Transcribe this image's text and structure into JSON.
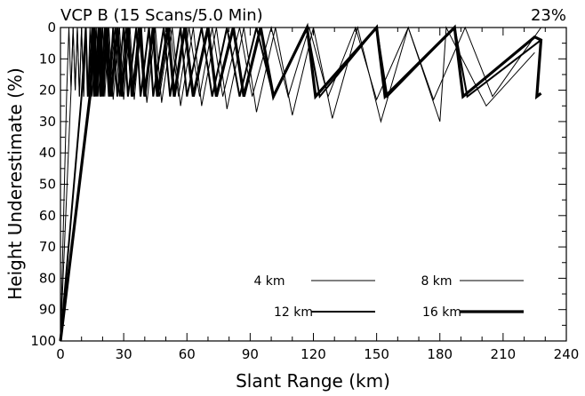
{
  "chart_data": {
    "type": "line",
    "title": "VCP B (15 Scans/5.0 Min)",
    "corner_label": "23%",
    "xlabel": "Slant Range (km)",
    "ylabel": "Height Underestimate (%)",
    "xlim": [
      0,
      240
    ],
    "ylim": [
      100,
      0
    ],
    "y_inverted": true,
    "grid": false,
    "x_ticks": [
      0,
      30,
      60,
      90,
      120,
      150,
      180,
      210,
      240
    ],
    "y_ticks": [
      0,
      10,
      20,
      30,
      40,
      50,
      60,
      70,
      80,
      90,
      100
    ],
    "legend_position": "bottom-right",
    "series": [
      {
        "name": "4 km",
        "line_width": 1,
        "points": [
          [
            0,
            100
          ],
          [
            3,
            20
          ],
          [
            4,
            0
          ],
          [
            5,
            20
          ],
          [
            6,
            0
          ],
          [
            7,
            20
          ],
          [
            8,
            0
          ],
          [
            9,
            22
          ],
          [
            10,
            0
          ],
          [
            11,
            22
          ],
          [
            12,
            0
          ],
          [
            13,
            22
          ],
          [
            14,
            0
          ],
          [
            15,
            22
          ],
          [
            17,
            0
          ],
          [
            18,
            22
          ],
          [
            20,
            0
          ],
          [
            21,
            22
          ],
          [
            23,
            0
          ],
          [
            25,
            23
          ],
          [
            28,
            0
          ],
          [
            30,
            23
          ],
          [
            33,
            0
          ],
          [
            35,
            23
          ],
          [
            38,
            0
          ],
          [
            41,
            24
          ],
          [
            45,
            0
          ],
          [
            48,
            24
          ],
          [
            53,
            0
          ],
          [
            57,
            25
          ],
          [
            63,
            0
          ],
          [
            67,
            25
          ],
          [
            74,
            0
          ],
          [
            79,
            26
          ],
          [
            87,
            0
          ],
          [
            93,
            27
          ],
          [
            102,
            0
          ],
          [
            110,
            28
          ],
          [
            120,
            0
          ],
          [
            129,
            29
          ],
          [
            141,
            0
          ],
          [
            152,
            30
          ],
          [
            165,
            0
          ],
          [
            180,
            30
          ],
          [
            183,
            0
          ],
          [
            202,
            25
          ],
          [
            225,
            8
          ]
        ]
      },
      {
        "name": "8 km",
        "line_width": 1,
        "points": [
          [
            0,
            100
          ],
          [
            5,
            20
          ],
          [
            6,
            0
          ],
          [
            7,
            20
          ],
          [
            8,
            0
          ],
          [
            9,
            22
          ],
          [
            10,
            0
          ],
          [
            11,
            22
          ],
          [
            12,
            0
          ],
          [
            13,
            22
          ],
          [
            15,
            0
          ],
          [
            16,
            22
          ],
          [
            18,
            0
          ],
          [
            19,
            22
          ],
          [
            21,
            0
          ],
          [
            23,
            22
          ],
          [
            26,
            0
          ],
          [
            28,
            22
          ],
          [
            31,
            0
          ],
          [
            34,
            22
          ],
          [
            37,
            0
          ],
          [
            40,
            22
          ],
          [
            44,
            0
          ],
          [
            47,
            22
          ],
          [
            52,
            0
          ],
          [
            56,
            22
          ],
          [
            61,
            0
          ],
          [
            66,
            22
          ],
          [
            72,
            0
          ],
          [
            77,
            22
          ],
          [
            85,
            0
          ],
          [
            91,
            22
          ],
          [
            100,
            0
          ],
          [
            108,
            22
          ],
          [
            118,
            0
          ],
          [
            127,
            22
          ],
          [
            140,
            0
          ],
          [
            150,
            23
          ],
          [
            165,
            0
          ],
          [
            177,
            23
          ],
          [
            192,
            0
          ],
          [
            205,
            22
          ],
          [
            228,
            0
          ]
        ]
      },
      {
        "name": "12 km",
        "line_width": 2,
        "points": [
          [
            0,
            100
          ],
          [
            10,
            22
          ],
          [
            12,
            0
          ],
          [
            13,
            22
          ],
          [
            15,
            0
          ],
          [
            16,
            22
          ],
          [
            18,
            0
          ],
          [
            19,
            22
          ],
          [
            21,
            0
          ],
          [
            23,
            22
          ],
          [
            25,
            0
          ],
          [
            27,
            22
          ],
          [
            30,
            0
          ],
          [
            32,
            22
          ],
          [
            36,
            0
          ],
          [
            38,
            22
          ],
          [
            42,
            0
          ],
          [
            44,
            22
          ],
          [
            49,
            0
          ],
          [
            52,
            22
          ],
          [
            57,
            0
          ],
          [
            60,
            22
          ],
          [
            67,
            0
          ],
          [
            72,
            22
          ],
          [
            79,
            0
          ],
          [
            85,
            22
          ],
          [
            93,
            0
          ],
          [
            101,
            22
          ],
          [
            117,
            0
          ],
          [
            123,
            22
          ],
          [
            150,
            0
          ],
          [
            155,
            22
          ],
          [
            187,
            0
          ],
          [
            193,
            22
          ],
          [
            228,
            4
          ]
        ]
      },
      {
        "name": "16 km",
        "line_width": 3.2,
        "points": [
          [
            0,
            100
          ],
          [
            14,
            22
          ],
          [
            16,
            0
          ],
          [
            17,
            22
          ],
          [
            19,
            0
          ],
          [
            20,
            22
          ],
          [
            22,
            0
          ],
          [
            24,
            22
          ],
          [
            27,
            0
          ],
          [
            29,
            22
          ],
          [
            32,
            0
          ],
          [
            34,
            22
          ],
          [
            38,
            0
          ],
          [
            40,
            22
          ],
          [
            44,
            0
          ],
          [
            46,
            22
          ],
          [
            51,
            0
          ],
          [
            54,
            22
          ],
          [
            59,
            0
          ],
          [
            63,
            22
          ],
          [
            70,
            0
          ],
          [
            74,
            22
          ],
          [
            82,
            0
          ],
          [
            87,
            22
          ],
          [
            95,
            0
          ],
          [
            101,
            22
          ],
          [
            117,
            0
          ],
          [
            121,
            22
          ],
          [
            150,
            0
          ],
          [
            154,
            22
          ],
          [
            187,
            0
          ],
          [
            191,
            22
          ],
          [
            225,
            3
          ],
          [
            228,
            4
          ],
          [
            226,
            22
          ],
          [
            228,
            21
          ]
        ]
      }
    ]
  }
}
